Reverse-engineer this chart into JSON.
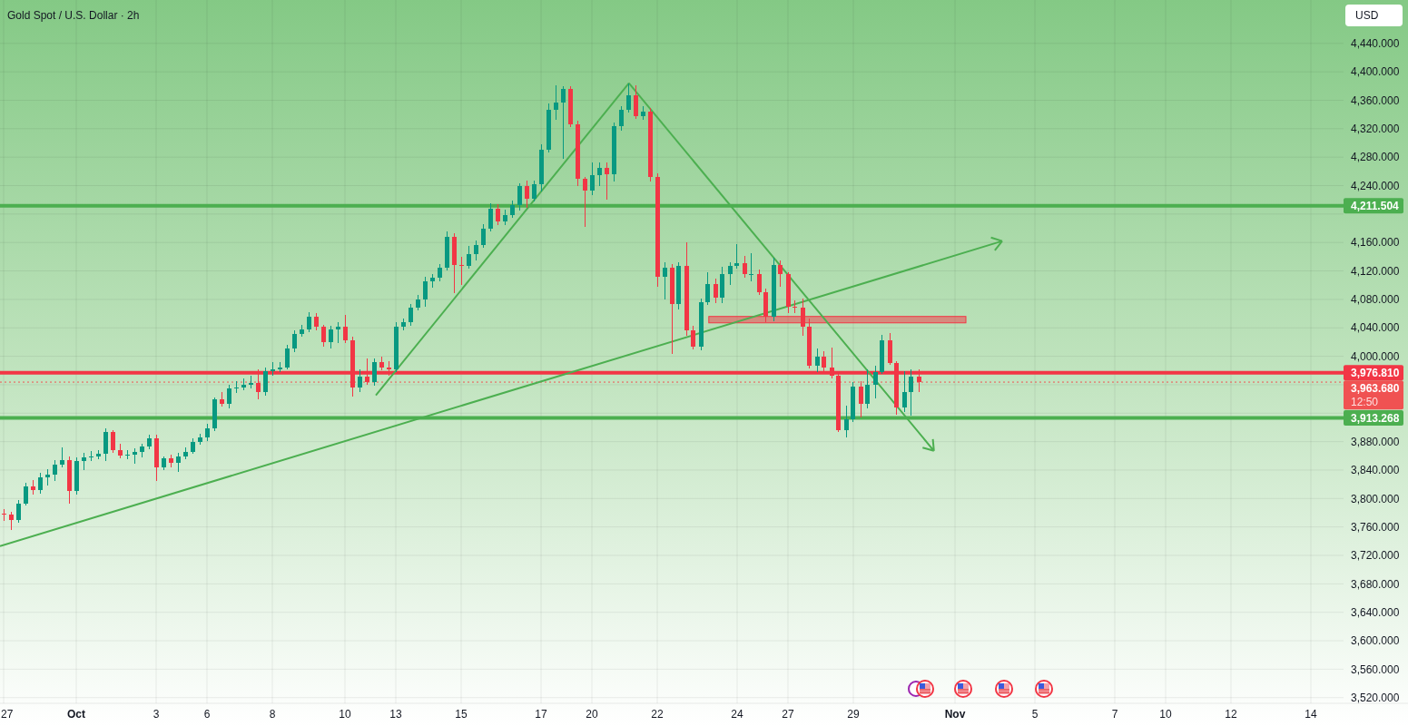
{
  "chart_data": {
    "type": "candlestick",
    "title": "Gold Spot / U.S. Dollar · 2h",
    "ylabel": "USD",
    "categories": [
      "27",
      null,
      null,
      null,
      null,
      null,
      null,
      null,
      null,
      null,
      "Oct",
      null,
      null,
      null,
      null,
      null,
      null,
      null,
      null,
      null,
      null,
      "3",
      null,
      null,
      null,
      null,
      null,
      null,
      "6",
      null,
      null,
      null,
      null,
      null,
      null,
      null,
      null,
      "8",
      null,
      null,
      null,
      null,
      null,
      null,
      null,
      null,
      null,
      "10",
      null,
      null,
      null,
      null,
      null,
      null,
      "13",
      null,
      null,
      null,
      null,
      null,
      null,
      null,
      null,
      "15",
      null,
      null,
      null,
      null,
      null,
      null,
      null,
      null,
      null,
      null,
      "17",
      null,
      null,
      null,
      null,
      null,
      null,
      "20",
      null,
      null,
      null,
      null,
      null,
      null,
      null,
      null,
      "22",
      null,
      null,
      null,
      null,
      null,
      null,
      null,
      null,
      null,
      null,
      "24",
      null,
      null,
      null,
      null,
      null,
      null,
      "27",
      null,
      null,
      null,
      null,
      null,
      null,
      null,
      null,
      "29",
      null,
      null,
      null,
      null,
      null,
      null,
      null,
      null,
      null,
      null,
      null,
      null,
      null,
      "Nov",
      null,
      null,
      null,
      null,
      null,
      null,
      null,
      null,
      null,
      null,
      "5",
      null,
      null,
      null,
      null,
      null,
      null,
      null,
      null,
      null,
      null,
      "7",
      null,
      null,
      null,
      null,
      null,
      null,
      "10",
      null,
      null,
      null,
      null,
      null,
      null,
      null,
      null,
      "12",
      null,
      null,
      null,
      null,
      null,
      null,
      null,
      null,
      null,
      null,
      "14",
      null,
      null,
      null,
      null
    ],
    "ohlc": [
      [
        3779,
        3784,
        3769,
        3778
      ],
      [
        3778,
        3780,
        3756,
        3770
      ],
      [
        3770,
        3797,
        3766,
        3793
      ],
      [
        3793,
        3822,
        3791,
        3817
      ],
      [
        3817,
        3825,
        3806,
        3812
      ],
      [
        3812,
        3835,
        3808,
        3830
      ],
      [
        3830,
        3840,
        3819,
        3834
      ],
      [
        3834,
        3853,
        3825,
        3848
      ],
      [
        3848,
        3871,
        3845,
        3854
      ],
      [
        3854,
        3858,
        3794,
        3811
      ],
      [
        3811,
        3857,
        3806,
        3853
      ],
      [
        3853,
        3863,
        3840,
        3858
      ],
      [
        3858,
        3866,
        3853,
        3859
      ],
      [
        3859,
        3868,
        3856,
        3863
      ],
      [
        3863,
        3898,
        3854,
        3893
      ],
      [
        3893,
        3896,
        3865,
        3868
      ],
      [
        3868,
        3876,
        3857,
        3861
      ],
      [
        3861,
        3868,
        3856,
        3862
      ],
      [
        3862,
        3870,
        3850,
        3866
      ],
      [
        3866,
        3876,
        3858,
        3873
      ],
      [
        3873,
        3889,
        3870,
        3884
      ],
      [
        3884,
        3889,
        3825,
        3844
      ],
      [
        3844,
        3859,
        3840,
        3856
      ],
      [
        3856,
        3861,
        3845,
        3850
      ],
      [
        3850,
        3863,
        3838,
        3859
      ],
      [
        3859,
        3871,
        3856,
        3866
      ],
      [
        3866,
        3884,
        3863,
        3880
      ],
      [
        3880,
        3891,
        3876,
        3886
      ],
      [
        3886,
        3904,
        3881,
        3899
      ],
      [
        3899,
        3942,
        3896,
        3939
      ],
      [
        3939,
        3949,
        3930,
        3933
      ],
      [
        3933,
        3959,
        3927,
        3955
      ],
      [
        3955,
        3965,
        3949,
        3956
      ],
      [
        3956,
        3968,
        3953,
        3960
      ],
      [
        3960,
        3972,
        3955,
        3962
      ],
      [
        3962,
        3981,
        3940,
        3950
      ],
      [
        3950,
        3983,
        3945,
        3979
      ],
      [
        3979,
        3991,
        3973,
        3981
      ],
      [
        3981,
        3991,
        3978,
        3984
      ],
      [
        3984,
        4016,
        3982,
        4011
      ],
      [
        4011,
        4036,
        4007,
        4032
      ],
      [
        4032,
        4044,
        4028,
        4038
      ],
      [
        4038,
        4061,
        4034,
        4056
      ],
      [
        4056,
        4060,
        4037,
        4041
      ],
      [
        4041,
        4044,
        4014,
        4020
      ],
      [
        4020,
        4042,
        4011,
        4038
      ],
      [
        4038,
        4047,
        4019,
        4042
      ],
      [
        4042,
        4057,
        4019,
        4023
      ],
      [
        4023,
        4027,
        3944,
        3956
      ],
      [
        3956,
        3981,
        3950,
        3972
      ],
      [
        3972,
        3996,
        3960,
        3964
      ],
      [
        3964,
        3996,
        3959,
        3992
      ],
      [
        3992,
        3999,
        3981,
        3984
      ],
      [
        3984,
        3993,
        3973,
        3982
      ],
      [
        3982,
        4047,
        3978,
        4042
      ],
      [
        4042,
        4052,
        4037,
        4048
      ],
      [
        4048,
        4073,
        4044,
        4069
      ],
      [
        4069,
        4085,
        4065,
        4080
      ],
      [
        4080,
        4111,
        4070,
        4106
      ],
      [
        4106,
        4115,
        4097,
        4110
      ],
      [
        4110,
        4129,
        4106,
        4124
      ],
      [
        4124,
        4175,
        4121,
        4168
      ],
      [
        4168,
        4172,
        4089,
        4129
      ],
      [
        4129,
        4139,
        4101,
        4127
      ],
      [
        4127,
        4154,
        4124,
        4144
      ],
      [
        4144,
        4162,
        4136,
        4157
      ],
      [
        4157,
        4185,
        4153,
        4180
      ],
      [
        4180,
        4214,
        4176,
        4208
      ],
      [
        4208,
        4213,
        4185,
        4189
      ],
      [
        4189,
        4205,
        4185,
        4199
      ],
      [
        4199,
        4218,
        4195,
        4213
      ],
      [
        4213,
        4243,
        4205,
        4240
      ],
      [
        4240,
        4246,
        4210,
        4222
      ],
      [
        4222,
        4247,
        4218,
        4242
      ],
      [
        4242,
        4297,
        4233,
        4291
      ],
      [
        4291,
        4355,
        4287,
        4346
      ],
      [
        4346,
        4380,
        4333,
        4357
      ],
      [
        4357,
        4379,
        4278,
        4376
      ],
      [
        4376,
        4379,
        4323,
        4326
      ],
      [
        4326,
        4330,
        4240,
        4249
      ],
      [
        4249,
        4252,
        4182,
        4233
      ],
      [
        4233,
        4272,
        4227,
        4255
      ],
      [
        4255,
        4272,
        4240,
        4265
      ],
      [
        4265,
        4272,
        4221,
        4256
      ],
      [
        4256,
        4328,
        4246,
        4323
      ],
      [
        4323,
        4351,
        4318,
        4347
      ],
      [
        4347,
        4383,
        4343,
        4367
      ],
      [
        4367,
        4380,
        4334,
        4338
      ],
      [
        4338,
        4351,
        4333,
        4344
      ],
      [
        4344,
        4348,
        4246,
        4252
      ],
      [
        4252,
        4256,
        4099,
        4112
      ],
      [
        4112,
        4131,
        4080,
        4124
      ],
      [
        4124,
        4129,
        4004,
        4074
      ],
      [
        4074,
        4131,
        4067,
        4127
      ],
      [
        4127,
        4159,
        4029,
        4036
      ],
      [
        4036,
        4042,
        4010,
        4014
      ],
      [
        4014,
        4080,
        4009,
        4076
      ],
      [
        4076,
        4118,
        4073,
        4102
      ],
      [
        4102,
        4108,
        4076,
        4083
      ],
      [
        4083,
        4125,
        4076,
        4116
      ],
      [
        4116,
        4131,
        4101,
        4127
      ],
      [
        4127,
        4157,
        4124,
        4131
      ],
      [
        4131,
        4141,
        4111,
        4115
      ],
      [
        4115,
        4144,
        4106,
        4116
      ],
      [
        4116,
        4121,
        4087,
        4090
      ],
      [
        4090,
        4095,
        4048,
        4055
      ],
      [
        4055,
        4138,
        4050,
        4129
      ],
      [
        4129,
        4134,
        4099,
        4115
      ],
      [
        4115,
        4118,
        4061,
        4070
      ],
      [
        4070,
        4078,
        4061,
        4069
      ],
      [
        4069,
        4080,
        4029,
        4042
      ],
      [
        4042,
        4052,
        3983,
        3987
      ],
      [
        3987,
        4010,
        3978,
        4000
      ],
      [
        4000,
        4006,
        3978,
        3984
      ],
      [
        3984,
        4011,
        3970,
        3973
      ],
      [
        3973,
        3978,
        3894,
        3896
      ],
      [
        3896,
        3930,
        3887,
        3912
      ],
      [
        3912,
        3963,
        3908,
        3958
      ],
      [
        3958,
        3965,
        3914,
        3933
      ],
      [
        3933,
        3981,
        3927,
        3960
      ],
      [
        3960,
        3986,
        3942,
        3978
      ],
      [
        3978,
        4029,
        3976,
        4023
      ],
      [
        4023,
        4032,
        3988,
        3991
      ],
      [
        3991,
        3993,
        3919,
        3928
      ],
      [
        3928,
        3978,
        3922,
        3950
      ],
      [
        3950,
        3981,
        3917,
        3972
      ],
      [
        3972,
        3981,
        3950,
        3963.68
      ],
      null,
      null,
      null,
      null,
      null,
      null,
      null,
      null,
      null,
      null,
      null,
      null,
      null,
      null,
      null,
      null,
      null,
      null,
      null,
      null,
      null,
      null,
      null,
      null,
      null,
      null,
      null,
      null,
      null,
      null,
      null,
      null,
      null,
      null,
      null,
      null,
      null,
      null,
      null,
      null,
      null,
      null,
      null,
      null,
      null,
      null,
      null,
      null,
      null,
      null,
      null,
      null,
      null,
      null,
      null,
      null,
      null,
      null
    ],
    "ylim": [
      3512,
      4501
    ],
    "yticks": [
      {
        "value": 3520,
        "label": "3,520.000"
      },
      {
        "value": 3560,
        "label": "3,560.000"
      },
      {
        "value": 3600,
        "label": "3,600.000"
      },
      {
        "value": 3640,
        "label": "3,640.000"
      },
      {
        "value": 3680,
        "label": "3,680.000"
      },
      {
        "value": 3720,
        "label": "3,720.000"
      },
      {
        "value": 3760,
        "label": "3,760.000"
      },
      {
        "value": 3800,
        "label": "3,800.000"
      },
      {
        "value": 3840,
        "label": "3,840.000"
      },
      {
        "value": 3880,
        "label": "3,880.000"
      },
      {
        "value": 3920,
        "label": null
      },
      {
        "value": 3960,
        "label": null
      },
      {
        "value": 4000,
        "label": "4,000.000"
      },
      {
        "value": 4040,
        "label": "4,040.000"
      },
      {
        "value": 4080,
        "label": "4,080.000"
      },
      {
        "value": 4120,
        "label": "4,120.000"
      },
      {
        "value": 4160,
        "label": "4,160.000"
      },
      {
        "value": 4200,
        "label": null
      },
      {
        "value": 4240,
        "label": "4,240.000"
      },
      {
        "value": 4280,
        "label": "4,280.000"
      },
      {
        "value": 4320,
        "label": "4,320.000"
      },
      {
        "value": 4360,
        "label": "4,360.000"
      },
      {
        "value": 4400,
        "label": "4,400.000"
      },
      {
        "value": 4440,
        "label": "4,440.000"
      }
    ],
    "ref_lines": [
      {
        "axis": "y",
        "value": 4211.504,
        "label": "4,211.504",
        "color": "#4caf50"
      },
      {
        "axis": "y",
        "value": 3976.81,
        "label": "3,976.810",
        "color": "#f23645"
      },
      {
        "axis": "y",
        "value": 3963.68,
        "label": "3,963.680",
        "color": "#f05252",
        "line_style": "dotted"
      },
      {
        "axis": "y",
        "value": 3913.268,
        "label": "3,913.268",
        "color": "#4caf50"
      }
    ],
    "bands": [
      {
        "axis": "y",
        "from": 4047,
        "to": 4056,
        "color": "#f23645"
      }
    ],
    "annotations": [
      "12:50"
    ],
    "grid": true
  }
}
